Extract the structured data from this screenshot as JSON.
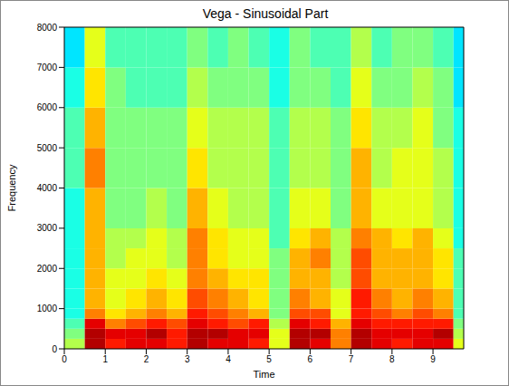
{
  "chart_data": {
    "type": "heatmap",
    "title": "Vega - Sinusoidal Part",
    "x_label": "Time",
    "y_label": "Frequency",
    "xlim": [
      0,
      9.75
    ],
    "ylim": [
      0,
      8000
    ],
    "xticks": [
      0,
      1,
      2,
      3,
      4,
      5,
      6,
      7,
      8,
      9
    ],
    "yticks": [
      0,
      1000,
      2000,
      3000,
      4000,
      5000,
      6000,
      7000,
      8000
    ],
    "x_edges": [
      0,
      0.5,
      1,
      1.5,
      2,
      2.5,
      3,
      3.5,
      4,
      4.5,
      5,
      5.5,
      6,
      6.5,
      7,
      7.5,
      8,
      8.5,
      9,
      9.5,
      9.75
    ],
    "y_edges": [
      0,
      250,
      500,
      750,
      1000,
      1500,
      2000,
      2500,
      3000,
      4000,
      5000,
      6000,
      7000,
      8000
    ],
    "color_range": [
      0,
      1
    ],
    "cells": [
      [
        0.55,
        0.95,
        0.85,
        0.9,
        0.9,
        0.85,
        0.95,
        0.9,
        0.9,
        0.85,
        0.6,
        0.95,
        0.9,
        0.75,
        0.95,
        0.9,
        0.85,
        0.9,
        0.9,
        0.6
      ],
      [
        0.5,
        0.95,
        0.9,
        0.9,
        0.95,
        0.85,
        0.95,
        0.95,
        0.9,
        0.9,
        0.6,
        0.95,
        0.95,
        0.75,
        0.95,
        0.9,
        0.9,
        0.9,
        0.95,
        0.55
      ],
      [
        0.45,
        0.9,
        0.75,
        0.8,
        0.85,
        0.8,
        0.9,
        0.85,
        0.8,
        0.85,
        0.55,
        0.9,
        0.85,
        0.7,
        0.9,
        0.85,
        0.85,
        0.85,
        0.85,
        0.5
      ],
      [
        0.4,
        0.75,
        0.65,
        0.7,
        0.75,
        0.7,
        0.85,
        0.8,
        0.75,
        0.7,
        0.5,
        0.8,
        0.8,
        0.6,
        0.85,
        0.8,
        0.75,
        0.8,
        0.75,
        0.45
      ],
      [
        0.4,
        0.7,
        0.6,
        0.65,
        0.7,
        0.65,
        0.8,
        0.75,
        0.7,
        0.65,
        0.5,
        0.75,
        0.7,
        0.6,
        0.85,
        0.75,
        0.7,
        0.75,
        0.7,
        0.45
      ],
      [
        0.4,
        0.7,
        0.6,
        0.6,
        0.65,
        0.6,
        0.75,
        0.7,
        0.65,
        0.65,
        0.5,
        0.7,
        0.7,
        0.55,
        0.8,
        0.7,
        0.7,
        0.7,
        0.65,
        0.45
      ],
      [
        0.4,
        0.7,
        0.55,
        0.6,
        0.6,
        0.55,
        0.75,
        0.65,
        0.6,
        0.6,
        0.5,
        0.7,
        0.75,
        0.55,
        0.8,
        0.7,
        0.7,
        0.7,
        0.65,
        0.45
      ],
      [
        0.4,
        0.7,
        0.55,
        0.55,
        0.6,
        0.55,
        0.75,
        0.65,
        0.6,
        0.6,
        0.45,
        0.65,
        0.7,
        0.55,
        0.75,
        0.7,
        0.65,
        0.7,
        0.6,
        0.4
      ],
      [
        0.4,
        0.7,
        0.5,
        0.5,
        0.55,
        0.5,
        0.7,
        0.6,
        0.55,
        0.55,
        0.45,
        0.6,
        0.6,
        0.5,
        0.7,
        0.6,
        0.6,
        0.6,
        0.55,
        0.4
      ],
      [
        0.45,
        0.75,
        0.5,
        0.5,
        0.5,
        0.5,
        0.65,
        0.55,
        0.55,
        0.55,
        0.45,
        0.55,
        0.55,
        0.5,
        0.7,
        0.55,
        0.6,
        0.6,
        0.55,
        0.4
      ],
      [
        0.45,
        0.7,
        0.5,
        0.5,
        0.5,
        0.5,
        0.6,
        0.55,
        0.55,
        0.55,
        0.45,
        0.55,
        0.55,
        0.5,
        0.65,
        0.55,
        0.55,
        0.6,
        0.5,
        0.4
      ],
      [
        0.4,
        0.65,
        0.5,
        0.45,
        0.45,
        0.45,
        0.55,
        0.5,
        0.5,
        0.5,
        0.4,
        0.5,
        0.5,
        0.45,
        0.6,
        0.5,
        0.5,
        0.55,
        0.5,
        0.35
      ],
      [
        0.35,
        0.6,
        0.45,
        0.45,
        0.45,
        0.45,
        0.5,
        0.45,
        0.5,
        0.45,
        0.4,
        0.5,
        0.45,
        0.45,
        0.55,
        0.45,
        0.5,
        0.5,
        0.45,
        0.35
      ]
    ]
  }
}
